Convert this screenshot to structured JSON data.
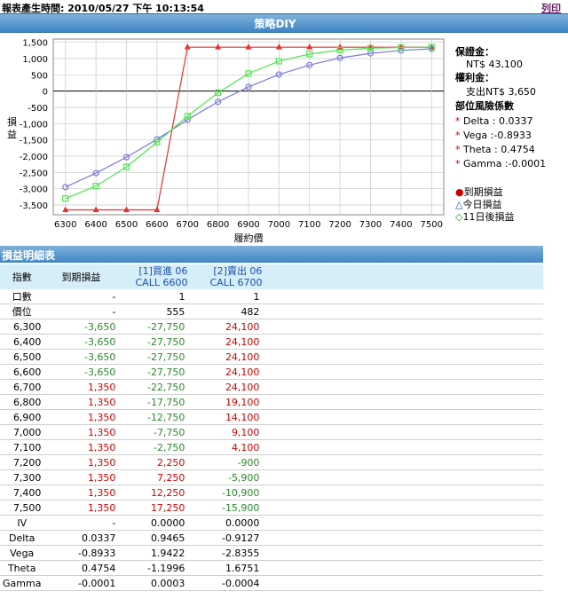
{
  "header": {
    "generated_label": "報表產生時間: 2010/05/27 下午 10:13:54",
    "print_label": "列印"
  },
  "chart_title": "策略DIY",
  "chart_data": {
    "type": "line",
    "xlabel": "履約價",
    "ylabel": "損益",
    "x": [
      6300,
      6400,
      6500,
      6600,
      6700,
      6800,
      6900,
      7000,
      7100,
      7200,
      7300,
      7400,
      7500
    ],
    "xticks": [
      "6300",
      "6400",
      "6500",
      "6600",
      "6700",
      "6800",
      "6900",
      "7000",
      "7100",
      "7200",
      "7300",
      "7400",
      "7500"
    ],
    "yticks": [
      1500,
      1000,
      500,
      0,
      -500,
      -1000,
      -1500,
      -2000,
      -2500,
      -3000,
      -3500
    ],
    "ytick_labels": [
      "1,500",
      "1,000",
      "500",
      "0",
      "-500",
      "-1,000",
      "-1,500",
      "-2,000",
      "-2,500",
      "-3,000",
      "-3,500"
    ],
    "ylim": [
      -3800,
      1600
    ],
    "xlim": [
      6260,
      7540
    ],
    "grid": true,
    "series": [
      {
        "name": "到期損益",
        "color": "#e8312f",
        "marker": "triangle",
        "values": [
          -3650,
          -3650,
          -3650,
          -3650,
          1350,
          1350,
          1350,
          1350,
          1350,
          1350,
          1350,
          1350,
          1350
        ]
      },
      {
        "name": "今日損益",
        "color": "#7b7bdb",
        "marker": "circle",
        "values": [
          -2950,
          -2520,
          -2030,
          -1480,
          -880,
          -330,
          130,
          510,
          800,
          1020,
          1160,
          1250,
          1300
        ]
      },
      {
        "name": "11日後損益",
        "color": "#4ee64e",
        "marker": "square",
        "values": [
          -3300,
          -2920,
          -2330,
          -1570,
          -770,
          -50,
          540,
          920,
          1140,
          1260,
          1320,
          1340,
          1350
        ]
      }
    ]
  },
  "info": {
    "margin_label": "保證金：",
    "margin_value": "NT$ 43,100",
    "premium_label": "權利金：",
    "premium_value": "支出NT$ 3,650",
    "risk_label": "部位風險係數",
    "greeks": [
      {
        "star": "*",
        "text": "Delta  : 0.0337"
      },
      {
        "star": "*",
        "text": "Vega  :-0.8933"
      },
      {
        "star": "*",
        "text": "Theta  : 0.4754"
      },
      {
        "star": "*",
        "text": "Gamma :-0.0001"
      }
    ],
    "legend": [
      {
        "symbol": "●",
        "text": "到期損益",
        "color": "#c00"
      },
      {
        "symbol": "△",
        "text": "今日損益",
        "color": "#1a4fb5"
      },
      {
        "symbol": "◇",
        "text": "11日後損益",
        "color": "#2a8a2a"
      }
    ]
  },
  "detail": {
    "section_title": "損益明細表",
    "headers": {
      "index": "指數",
      "expiry": "到期損益",
      "leg1_a": "[1]買進 06",
      "leg1_b": "CALL 6600",
      "leg2_a": "[2]賣出 06",
      "leg2_b": "CALL 6700"
    },
    "rows": [
      {
        "k": "口數",
        "a": "-",
        "b": "1",
        "c": "1",
        "center": true
      },
      {
        "k": "價位",
        "a": "-",
        "b": "555",
        "c": "482",
        "center": true
      },
      {
        "k": "6,300",
        "a": "-3,650",
        "b": "-27,750",
        "c": "24,100"
      },
      {
        "k": "6,400",
        "a": "-3,650",
        "b": "-27,750",
        "c": "24,100"
      },
      {
        "k": "6,500",
        "a": "-3,650",
        "b": "-27,750",
        "c": "24,100"
      },
      {
        "k": "6,600",
        "a": "-3,650",
        "b": "-27,750",
        "c": "24,100"
      },
      {
        "k": "6,700",
        "a": "1,350",
        "b": "-22,750",
        "c": "24,100"
      },
      {
        "k": "6,800",
        "a": "1,350",
        "b": "-17,750",
        "c": "19,100"
      },
      {
        "k": "6,900",
        "a": "1,350",
        "b": "-12,750",
        "c": "14,100"
      },
      {
        "k": "7,000",
        "a": "1,350",
        "b": "-7,750",
        "c": "9,100"
      },
      {
        "k": "7,100",
        "a": "1,350",
        "b": "-2,750",
        "c": "4,100"
      },
      {
        "k": "7,200",
        "a": "1,350",
        "b": "2,250",
        "c": "-900"
      },
      {
        "k": "7,300",
        "a": "1,350",
        "b": "7,250",
        "c": "-5,900"
      },
      {
        "k": "7,400",
        "a": "1,350",
        "b": "12,250",
        "c": "-10,900"
      },
      {
        "k": "7,500",
        "a": "1,350",
        "b": "17,250",
        "c": "-15,900"
      },
      {
        "k": "IV",
        "a": "-",
        "b": "0.0000",
        "c": "0.0000",
        "center": true
      },
      {
        "k": "Delta",
        "a": "0.0337",
        "b": "0.9465",
        "c": "-0.9127",
        "center": true
      },
      {
        "k": "Vega",
        "a": "-0.8933",
        "b": "1.9422",
        "c": "-2.8355",
        "center": true
      },
      {
        "k": "Theta",
        "a": "0.4754",
        "b": "-1.1996",
        "c": "1.6751",
        "center": true
      },
      {
        "k": "Gamma",
        "a": "-0.0001",
        "b": "0.0003",
        "c": "-0.0004",
        "center": true
      }
    ]
  }
}
